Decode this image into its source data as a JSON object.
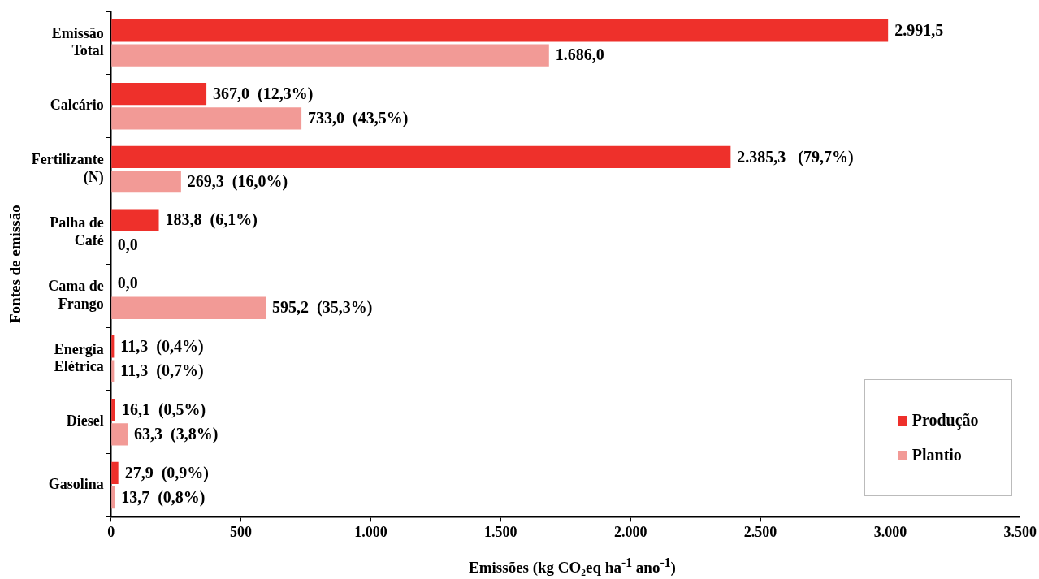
{
  "chart_data": {
    "type": "bar",
    "orientation": "horizontal",
    "xlabel": "Emissões (kg CO₂eq ha$^{-1}$ ano$^{-1}$)",
    "ylabel": "Fontes de emissão",
    "categories": [
      "Emissão\nTotal",
      "Calcário",
      "Fertilizante\n(N)",
      "Palha de\nCafé",
      "Cama de\nFrango",
      "Energia\nElétrica",
      "Diesel",
      "Gasolina"
    ],
    "series": [
      {
        "name": "Produção",
        "color": "#ee302b",
        "values": [
          2991.5,
          367.0,
          2385.3,
          183.8,
          0.0,
          11.3,
          16.1,
          27.9
        ],
        "value_labels": [
          "2.991,5",
          "367,0  (12,3%)",
          "2.385,3   (79,7%)",
          "183,8  (6,1%)",
          "0,0",
          "11,3  (0,4%)",
          "16,1  (0,5%)",
          "27,9  (0,9%)"
        ]
      },
      {
        "name": "Plantio",
        "color": "#f29a96",
        "values": [
          1686.0,
          733.0,
          269.3,
          0.0,
          595.2,
          11.3,
          63.3,
          13.7
        ],
        "value_labels": [
          "1.686,0",
          "733,0  (43,5%)",
          "269,3  (16,0%)",
          "0,0",
          "595,2  (35,3%)",
          "11,3  (0,7%)",
          "63,3  (3,8%)",
          "13,7  (0,8%)"
        ]
      }
    ],
    "xlim": [
      0,
      3500
    ],
    "xticks": [
      0,
      500,
      {
        "value": 1000,
        "label": "1.000"
      },
      {
        "value": 1500,
        "label": "1.500"
      },
      {
        "value": 2000,
        "label": "2.000"
      },
      {
        "value": 2500,
        "label": "2.500"
      },
      {
        "value": 3000,
        "label": "3.000"
      },
      {
        "value": 3500,
        "label": "3.500"
      }
    ],
    "grid": false,
    "legend": "bottom right"
  }
}
